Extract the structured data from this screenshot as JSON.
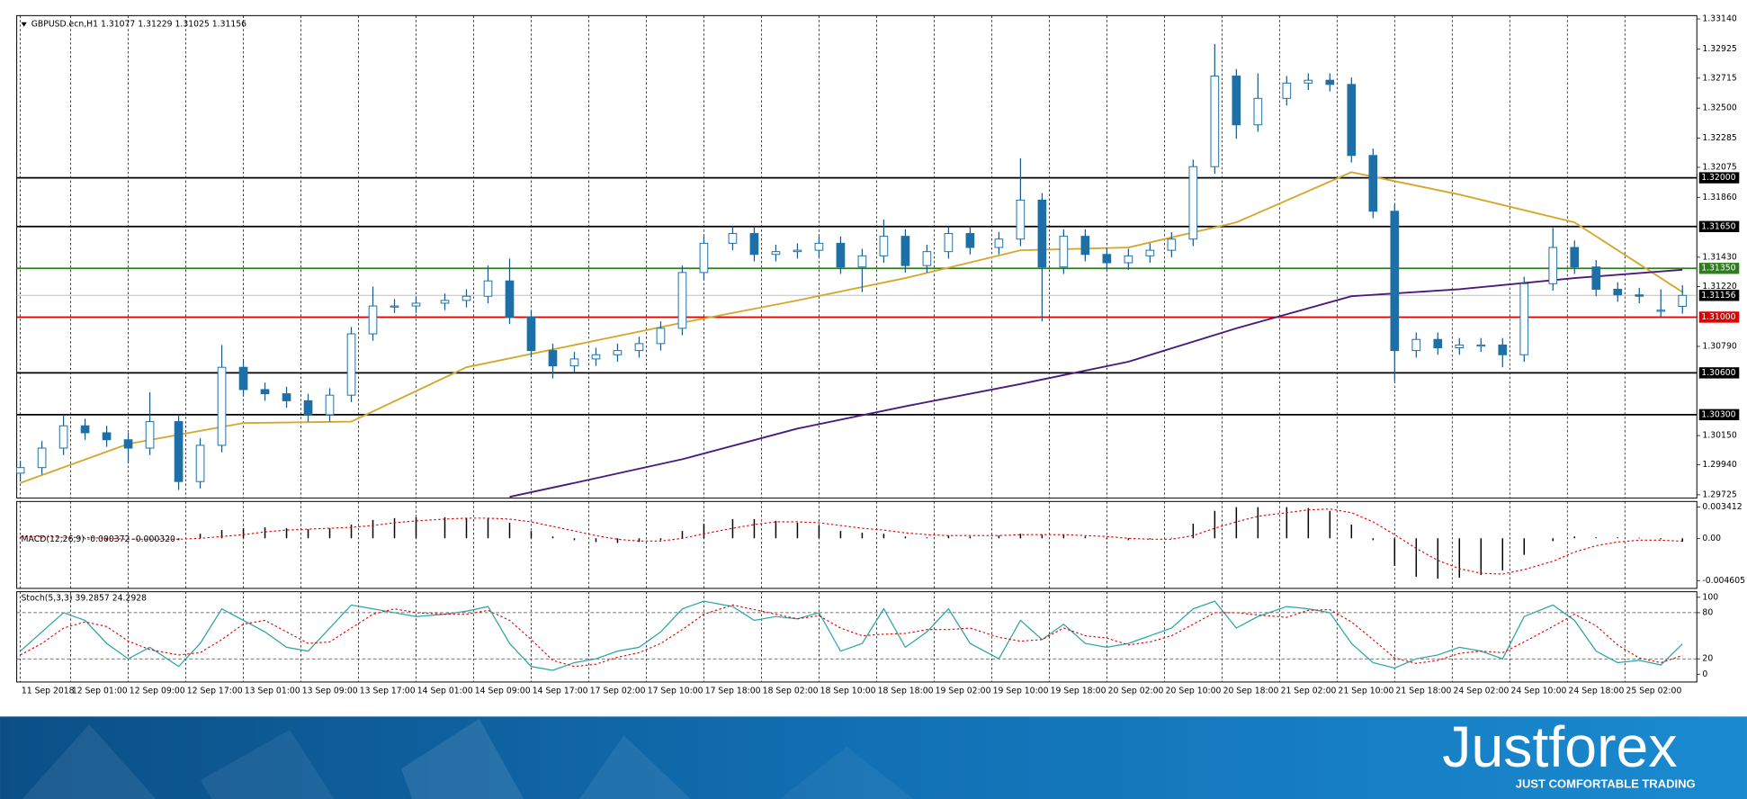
{
  "chart_data": [
    {
      "type": "candlestick",
      "title": "GBPUSD.ecn,H1  1.31077 1.31229 1.31025 1.31156",
      "colors": {
        "up": "#ffffff",
        "down": "#1f6fa6",
        "wick": "#1f5a86"
      },
      "x": [
        0,
        3,
        6,
        9,
        12,
        15,
        18,
        22,
        25,
        28,
        31,
        34,
        37,
        40,
        43,
        46,
        49,
        52,
        55,
        59,
        62,
        65,
        68,
        71,
        74,
        77,
        80,
        83,
        86,
        89,
        92,
        95,
        99,
        102,
        105,
        108,
        111,
        114,
        117,
        120,
        123,
        126,
        129,
        132,
        136,
        139,
        142,
        145,
        148,
        151,
        154,
        157,
        160,
        163,
        166,
        169,
        172,
        176,
        179,
        182,
        185,
        188,
        191,
        194,
        197,
        200,
        203,
        206,
        209,
        213,
        216,
        219,
        222,
        225,
        228,
        231
      ],
      "open": [
        1.2988,
        1.2992,
        1.3006,
        1.3022,
        1.3017,
        1.3012,
        1.3006,
        1.3025,
        1.2982,
        1.3008,
        1.3064,
        1.3048,
        1.3045,
        1.304,
        1.303,
        1.3044,
        1.3088,
        1.3108,
        1.3108,
        1.311,
        1.3112,
        1.3115,
        1.3126,
        1.31,
        1.3076,
        1.3065,
        1.307,
        1.3073,
        1.3076,
        1.3081,
        1.3092,
        1.3132,
        1.3153,
        1.316,
        1.3145,
        1.3147,
        1.3148,
        1.3153,
        1.3136,
        1.3144,
        1.3158,
        1.3137,
        1.3147,
        1.316,
        1.315,
        1.3156,
        1.3184,
        1.3136,
        1.3158,
        1.3145,
        1.3139,
        1.3144,
        1.3148,
        1.3156,
        1.3208,
        1.3273,
        1.3238,
        1.3257,
        1.3268,
        1.327,
        1.3267,
        1.3216,
        1.3176,
        1.3076,
        1.3084,
        1.3078,
        1.308,
        1.308,
        1.3073,
        1.3124,
        1.315,
        1.3136,
        1.312,
        1.3116,
        1.3105,
        1.31077
      ],
      "high": [
        1.2997,
        1.3011,
        1.303,
        1.3027,
        1.3022,
        1.3017,
        1.3046,
        1.303,
        1.3013,
        1.308,
        1.3069,
        1.3053,
        1.305,
        1.3045,
        1.3049,
        1.3093,
        1.3122,
        1.3113,
        1.3115,
        1.3117,
        1.312,
        1.3137,
        1.3142,
        1.3105,
        1.3081,
        1.3075,
        1.3078,
        1.3081,
        1.3086,
        1.3097,
        1.3137,
        1.3158,
        1.3165,
        1.3165,
        1.3152,
        1.3153,
        1.3158,
        1.3158,
        1.3149,
        1.317,
        1.3163,
        1.3152,
        1.3165,
        1.3165,
        1.3161,
        1.3214,
        1.3189,
        1.3163,
        1.3163,
        1.315,
        1.3149,
        1.3153,
        1.3161,
        1.3213,
        1.3296,
        1.3278,
        1.3275,
        1.3273,
        1.3275,
        1.3275,
        1.3272,
        1.3221,
        1.3181,
        1.3089,
        1.3089,
        1.3085,
        1.3085,
        1.3085,
        1.3129,
        1.3164,
        1.3155,
        1.3141,
        1.3125,
        1.3121,
        1.312,
        1.31229
      ],
      "low": [
        1.2983,
        1.2987,
        1.3001,
        1.3012,
        1.3007,
        1.2996,
        1.3001,
        1.2976,
        1.2977,
        1.3003,
        1.3043,
        1.304,
        1.3035,
        1.3025,
        1.3025,
        1.3039,
        1.3083,
        1.3103,
        1.3103,
        1.3105,
        1.3107,
        1.311,
        1.3095,
        1.3071,
        1.3056,
        1.306,
        1.3065,
        1.3068,
        1.3071,
        1.3076,
        1.3087,
        1.3127,
        1.3148,
        1.314,
        1.314,
        1.3142,
        1.3143,
        1.3131,
        1.3118,
        1.3139,
        1.3132,
        1.3132,
        1.3142,
        1.3145,
        1.3145,
        1.3151,
        1.3097,
        1.3131,
        1.314,
        1.3134,
        1.3134,
        1.3139,
        1.3143,
        1.3151,
        1.3203,
        1.3228,
        1.3233,
        1.3252,
        1.3263,
        1.3262,
        1.3211,
        1.3171,
        1.3054,
        1.3071,
        1.3073,
        1.3073,
        1.3075,
        1.3064,
        1.3068,
        1.3119,
        1.3131,
        1.3115,
        1.3111,
        1.311,
        1.31,
        1.31025
      ],
      "close": [
        1.2992,
        1.3006,
        1.3022,
        1.3017,
        1.3012,
        1.3006,
        1.3025,
        1.2982,
        1.3008,
        1.3064,
        1.3048,
        1.3045,
        1.304,
        1.303,
        1.3044,
        1.3088,
        1.3108,
        1.3108,
        1.311,
        1.3112,
        1.3115,
        1.3126,
        1.31,
        1.3076,
        1.3065,
        1.307,
        1.3073,
        1.3076,
        1.3081,
        1.3092,
        1.3132,
        1.3153,
        1.316,
        1.3145,
        1.3147,
        1.3148,
        1.3153,
        1.3136,
        1.3144,
        1.3158,
        1.3137,
        1.3147,
        1.316,
        1.315,
        1.3156,
        1.3184,
        1.3136,
        1.3158,
        1.3145,
        1.3139,
        1.3144,
        1.3148,
        1.3156,
        1.3208,
        1.3273,
        1.3238,
        1.3257,
        1.3268,
        1.327,
        1.3267,
        1.3216,
        1.3176,
        1.3076,
        1.3084,
        1.3078,
        1.308,
        1.308,
        1.3073,
        1.3124,
        1.315,
        1.3136,
        1.312,
        1.3116,
        1.3115,
        1.3105,
        1.31156
      ],
      "lines": [
        {
          "color": "#d4a82e",
          "x": [
            0,
            15,
            31,
            46,
            62,
            77,
            92,
            108,
            123,
            139,
            154,
            169,
            185,
            200,
            216,
            231
          ],
          "values": [
            1.2981,
            1.3009,
            1.3024,
            1.3025,
            1.3064,
            1.308,
            1.3096,
            1.3112,
            1.3128,
            1.3148,
            1.315,
            1.3168,
            1.3204,
            1.3188,
            1.3168,
            1.3118
          ]
        },
        {
          "color": "#4b1a7a",
          "x": [
            68,
            77,
            92,
            108,
            123,
            139,
            154,
            169,
            185,
            200,
            216,
            231
          ],
          "values": [
            1.2971,
            1.2981,
            1.2998,
            1.302,
            1.3036,
            1.3052,
            1.3068,
            1.3092,
            1.3115,
            1.312,
            1.3128,
            1.3134
          ]
        }
      ],
      "levels": [
        {
          "value": 1.32,
          "label": "1.32000",
          "color": "#000000"
        },
        {
          "value": 1.3165,
          "label": "1.31650",
          "color": "#000000"
        },
        {
          "value": 1.3135,
          "label": "1.31350",
          "color": "#2e7d1e"
        },
        {
          "value": 1.31156,
          "color": "#c0c0c0",
          "box": "#000000"
        },
        {
          "value": 1.31,
          "label": "1.31000",
          "color": "#e00000"
        },
        {
          "value": 1.306,
          "label": "1.30600",
          "color": "#000000"
        },
        {
          "value": 1.303,
          "label": "1.30300",
          "color": "#000000"
        }
      ],
      "xlim": [
        -0.5,
        233
      ],
      "xticks": [
        {
          "value": 0,
          "label": "11 Sep 2018"
        },
        {
          "value": 7,
          "label": "12 Sep 01:00"
        },
        {
          "value": 15,
          "label": "12 Sep 09:00"
        },
        {
          "value": 23,
          "label": "12 Sep 17:00"
        },
        {
          "value": 31,
          "label": "13 Sep 01:00"
        },
        {
          "value": 39,
          "label": "13 Sep 09:00"
        },
        {
          "value": 47,
          "label": "13 Sep 17:00"
        },
        {
          "value": 55,
          "label": "14 Sep 01:00"
        },
        {
          "value": 63,
          "label": "14 Sep 09:00"
        },
        {
          "value": 71,
          "label": "14 Sep 17:00"
        },
        {
          "value": 79,
          "label": "17 Sep 02:00"
        },
        {
          "value": 87,
          "label": "17 Sep 10:00"
        },
        {
          "value": 95,
          "label": "17 Sep 18:00"
        },
        {
          "value": 103,
          "label": "18 Sep 02:00"
        },
        {
          "value": 111,
          "label": "18 Sep 10:00"
        },
        {
          "value": 119,
          "label": "18 Sep 18:00"
        },
        {
          "value": 127,
          "label": "19 Sep 02:00"
        },
        {
          "value": 135,
          "label": "19 Sep 10:00"
        },
        {
          "value": 143,
          "label": "19 Sep 18:00"
        },
        {
          "value": 151,
          "label": "20 Sep 02:00"
        },
        {
          "value": 159,
          "label": "20 Sep 10:00"
        },
        {
          "value": 167,
          "label": "20 Sep 18:00"
        },
        {
          "value": 175,
          "label": "21 Sep 02:00"
        },
        {
          "value": 183,
          "label": "21 Sep 10:00"
        },
        {
          "value": 191,
          "label": "21 Sep 18:00"
        },
        {
          "value": 199,
          "label": "24 Sep 02:00"
        },
        {
          "value": 207,
          "label": "24 Sep 10:00"
        },
        {
          "value": 215,
          "label": "24 Sep 18:00"
        },
        {
          "value": 223,
          "label": "25 Sep 02:00"
        }
      ],
      "ylim": [
        1.29725,
        1.3314
      ],
      "yticks": [
        {
          "value": 1.3314,
          "label": "1.33140"
        },
        1.32925,
        1.32715,
        {
          "value": 1.325,
          "label": "1.32500"
        },
        1.32285,
        1.32075,
        {
          "value": 1.3186,
          "label": "1.31860"
        },
        {
          "value": 1.3143,
          "label": "1.31430"
        },
        {
          "value": 1.3122,
          "label": "1.31220"
        },
        {
          "value": 1.3079,
          "label": "1.30790"
        },
        {
          "value": 1.3015,
          "label": "1.30150"
        },
        {
          "value": 1.2994,
          "label": "1.29940"
        },
        1.29725
      ],
      "grid": true
    },
    {
      "type": "macd",
      "title": "MACD(12,26,9) -0.000372 -0.000320",
      "histogram": {
        "color": "#000000",
        "values": [
          0.0001,
          0.0001,
          0,
          -0.0001,
          -0.0002,
          -0.0001,
          0,
          -0.0002,
          0.0005,
          0.0009,
          0.0011,
          0.0012,
          0.0011,
          0.001,
          0.0011,
          0.0015,
          0.002,
          0.0022,
          0.0023,
          0.0023,
          0.0022,
          0.0022,
          0.0017,
          0.0008,
          0.0002,
          -0.0002,
          -0.0004,
          -0.0005,
          -0.0004,
          -0.0002,
          0.0008,
          0.0016,
          0.0021,
          0.0021,
          0.0019,
          0.0017,
          0.0014,
          0.0008,
          0.0006,
          0.0005,
          0.0002,
          0.0001,
          0.0003,
          0.0002,
          0.0003,
          0.0005,
          0.0004,
          0.0004,
          0.0002,
          -0.0001,
          -0.0002,
          -0.0001,
          0,
          0.0016,
          0.003,
          0.0034,
          0.0034,
          0.0034,
          0.0033,
          0.003,
          0.0015,
          -0.0002,
          -0.003,
          -0.0042,
          -0.0044,
          -0.0043,
          -0.004,
          -0.0035,
          -0.0018,
          -0.0003,
          0.0002,
          0.0001,
          0.0001,
          0,
          -0.0001,
          -0.000372
        ]
      },
      "signal": {
        "color": "#e00000",
        "values": [
          0.0002,
          0.0002,
          0.0001,
          0.0001,
          0,
          -0.0001,
          -0.0001,
          -0.0001,
          0,
          0.0002,
          0.0004,
          0.0007,
          0.0009,
          0.001,
          0.0011,
          0.0012,
          0.0014,
          0.0017,
          0.0019,
          0.0021,
          0.0022,
          0.0022,
          0.0021,
          0.0018,
          0.0013,
          0.0008,
          0.0003,
          -0.0001,
          -0.0003,
          -0.0003,
          0,
          0.0005,
          0.0011,
          0.0015,
          0.0018,
          0.0018,
          0.0017,
          0.0014,
          0.0011,
          0.0009,
          0.0006,
          0.0004,
          0.0003,
          0.0003,
          0.0003,
          0.0004,
          0.0004,
          0.0004,
          0.0003,
          0.0002,
          0,
          -0.0001,
          -0.0001,
          0.0003,
          0.0011,
          0.0018,
          0.0024,
          0.0028,
          0.0031,
          0.0032,
          0.0028,
          0.0018,
          0.0004,
          -0.0011,
          -0.0024,
          -0.0033,
          -0.0038,
          -0.0039,
          -0.0034,
          -0.0025,
          -0.0015,
          -0.0008,
          -0.0004,
          -0.0002,
          -0.0002,
          -0.00032
        ]
      },
      "ylim": [
        -0.004605,
        0.003412
      ],
      "yticks": [
        0.003412,
        {
          "value": 0,
          "label": "0.00"
        },
        -0.004605
      ]
    },
    {
      "type": "stochastic",
      "title": "Stoch(5,3,3) 39.2857 24.2928",
      "main": {
        "color": "#2aa5a5",
        "values": [
          30,
          55,
          80,
          70,
          40,
          20,
          35,
          10,
          40,
          85,
          70,
          55,
          35,
          30,
          60,
          90,
          85,
          80,
          75,
          78,
          82,
          88,
          40,
          10,
          5,
          15,
          20,
          30,
          35,
          55,
          85,
          95,
          88,
          70,
          75,
          72,
          80,
          30,
          40,
          85,
          35,
          55,
          85,
          40,
          20,
          70,
          45,
          65,
          40,
          35,
          40,
          50,
          60,
          85,
          95,
          60,
          75,
          88,
          85,
          80,
          40,
          15,
          8,
          20,
          25,
          35,
          30,
          20,
          75,
          90,
          70,
          30,
          15,
          18,
          12,
          39.2857
        ]
      },
      "signal": {
        "color": "#e00000",
        "values": [
          25,
          40,
          60,
          68,
          62,
          43,
          32,
          25,
          28,
          45,
          65,
          70,
          55,
          40,
          42,
          60,
          78,
          85,
          80,
          78,
          78,
          83,
          70,
          45,
          18,
          10,
          13,
          22,
          28,
          40,
          58,
          78,
          90,
          84,
          78,
          72,
          76,
          60,
          50,
          52,
          53,
          58,
          58,
          60,
          48,
          43,
          45,
          60,
          50,
          47,
          38,
          42,
          50,
          65,
          80,
          80,
          77,
          74,
          83,
          84,
          68,
          45,
          21,
          14,
          18,
          27,
          30,
          28,
          42,
          62,
          78,
          63,
          38,
          21,
          15,
          24.2928
        ]
      },
      "levels": [
        20,
        80
      ],
      "ylim": [
        0,
        100
      ],
      "yticks": [
        100,
        80,
        20,
        0
      ]
    }
  ],
  "footer": {
    "logo": "Justforex",
    "tagline": "JUST COMFORTABLE TRADING"
  }
}
